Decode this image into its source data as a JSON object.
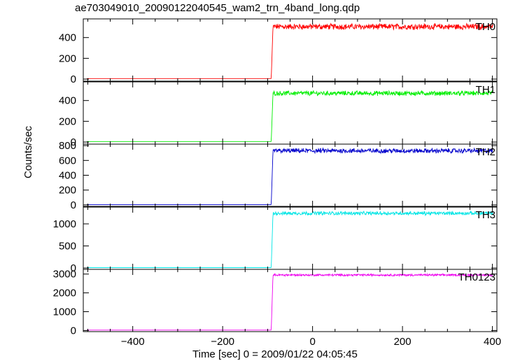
{
  "window": {
    "title": "ae703049010_20090122040545_wam2_trn_4band_long.qdp"
  },
  "chart_data": {
    "type": "line",
    "title": "ae703049010_20090122040545_wam2_trn_4band_long.qdp",
    "xlabel": "Time [sec] 0 = 2009/01/22 04:05:45",
    "ylabel": "Counts/sec",
    "xlim": [
      -510,
      410
    ],
    "xticks": [
      -400,
      -200,
      0,
      200,
      400
    ],
    "transition_time": -92,
    "legend": "none",
    "grid": false,
    "panels": [
      {
        "name": "TH0",
        "color": "#ff0000",
        "ylim": [
          -20,
          580
        ],
        "yticks": [
          0,
          200,
          400
        ],
        "pre_level": 5,
        "post_level": 505,
        "noise": 25
      },
      {
        "name": "TH1",
        "color": "#00ee00",
        "ylim": [
          -20,
          580
        ],
        "yticks": [
          0,
          200,
          400
        ],
        "pre_level": 5,
        "post_level": 470,
        "noise": 20
      },
      {
        "name": "TH2",
        "color": "#0000cc",
        "ylim": [
          -20,
          820
        ],
        "yticks": [
          0,
          200,
          400,
          600,
          800
        ],
        "pre_level": 5,
        "post_level": 730,
        "noise": 28
      },
      {
        "name": "TH3",
        "color": "#00e5e5",
        "ylim": [
          -30,
          1380
        ],
        "yticks": [
          0,
          500,
          1000
        ],
        "pre_level": 10,
        "post_level": 1240,
        "noise": 35
      },
      {
        "name": "TH0123",
        "color": "#ee00ee",
        "ylim": [
          -60,
          3250
        ],
        "yticks": [
          0,
          1000,
          2000,
          3000
        ],
        "pre_level": 20,
        "post_level": 2950,
        "noise": 50
      }
    ]
  }
}
